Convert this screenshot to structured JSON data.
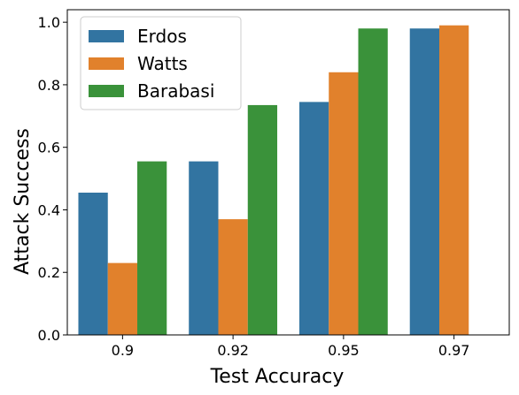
{
  "chart_data": {
    "type": "bar",
    "categories": [
      "0.9",
      "0.92",
      "0.95",
      "0.97"
    ],
    "series": [
      {
        "name": "Erdos",
        "color": "#3274a1",
        "values": [
          0.455,
          0.555,
          0.745,
          0.98
        ]
      },
      {
        "name": "Watts",
        "color": "#e1812c",
        "values": [
          0.23,
          0.37,
          0.84,
          0.99
        ]
      },
      {
        "name": "Barabasi",
        "color": "#3a923a",
        "values": [
          0.555,
          0.735,
          0.98,
          null
        ]
      }
    ],
    "xlabel": "Test Accuracy",
    "ylabel": "Attack Success",
    "ylim": [
      0,
      1.04
    ],
    "yticks": [
      "0.0",
      "0.2",
      "0.4",
      "0.6",
      "0.8",
      "1.0"
    ],
    "grid": false,
    "legend_position": "top-left"
  }
}
